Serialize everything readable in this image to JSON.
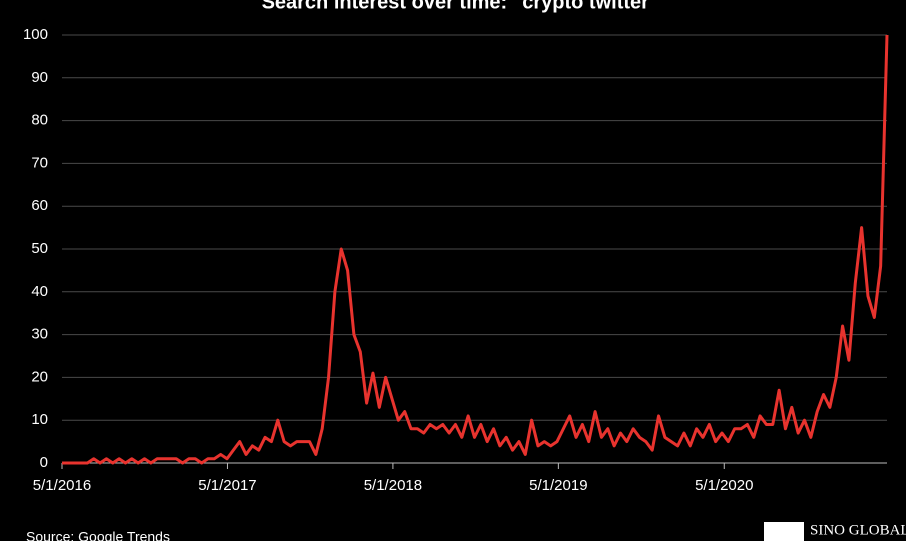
{
  "chart_data": {
    "type": "line",
    "title": "Search interest over time: \"crypto twitter\"",
    "source": "Source: Google Trends",
    "logo": "SINO GLOBAL",
    "color": "#e8332e",
    "grid": true,
    "xlim": [
      "5/1/2016",
      "4/25/2021"
    ],
    "xticks": [
      "5/1/2016",
      "5/1/2017",
      "5/1/2018",
      "5/1/2019",
      "5/1/2020"
    ],
    "ylim": [
      0,
      100
    ],
    "yticks": [
      0,
      10,
      20,
      30,
      40,
      50,
      60,
      70,
      80,
      90,
      100
    ],
    "x": [
      "5/1/2016",
      "5/15/2016",
      "5/29/2016",
      "6/12/2016",
      "6/26/2016",
      "7/10/2016",
      "7/24/2016",
      "8/7/2016",
      "8/21/2016",
      "9/4/2016",
      "9/18/2016",
      "10/2/2016",
      "10/16/2016",
      "10/30/2016",
      "11/13/2016",
      "11/27/2016",
      "12/11/2016",
      "12/25/2016",
      "1/8/2017",
      "1/22/2017",
      "2/5/2017",
      "2/19/2017",
      "3/5/2017",
      "3/19/2017",
      "4/2/2017",
      "4/16/2017",
      "4/30/2017",
      "5/14/2017",
      "5/28/2017",
      "6/11/2017",
      "6/25/2017",
      "7/9/2017",
      "7/23/2017",
      "8/6/2017",
      "8/20/2017",
      "9/3/2017",
      "9/17/2017",
      "10/1/2017",
      "10/15/2017",
      "10/29/2017",
      "11/12/2017",
      "11/26/2017",
      "12/10/2017",
      "12/24/2017",
      "1/7/2018",
      "1/21/2018",
      "2/4/2018",
      "2/18/2018",
      "3/4/2018",
      "3/18/2018",
      "4/1/2018",
      "4/15/2018",
      "4/29/2018",
      "5/13/2018",
      "5/27/2018",
      "6/10/2018",
      "6/24/2018",
      "7/8/2018",
      "7/22/2018",
      "8/5/2018",
      "8/19/2018",
      "9/2/2018",
      "9/16/2018",
      "9/30/2018",
      "10/14/2018",
      "10/28/2018",
      "11/11/2018",
      "11/25/2018",
      "12/9/2018",
      "12/23/2018",
      "1/6/2019",
      "1/20/2019",
      "2/3/2019",
      "2/17/2019",
      "3/3/2019",
      "3/17/2019",
      "3/31/2019",
      "4/14/2019",
      "4/28/2019",
      "5/12/2019",
      "5/26/2019",
      "6/9/2019",
      "6/23/2019",
      "7/7/2019",
      "7/21/2019",
      "8/4/2019",
      "8/18/2019",
      "9/1/2019",
      "9/15/2019",
      "9/29/2019",
      "10/13/2019",
      "10/27/2019",
      "11/10/2019",
      "11/24/2019",
      "12/8/2019",
      "12/22/2019",
      "1/5/2020",
      "1/19/2020",
      "2/2/2020",
      "2/16/2020",
      "3/1/2020",
      "3/15/2020",
      "3/29/2020",
      "4/12/2020",
      "4/26/2020",
      "5/10/2020",
      "5/24/2020",
      "6/7/2020",
      "6/21/2020",
      "7/5/2020",
      "7/19/2020",
      "8/2/2020",
      "8/16/2020",
      "8/30/2020",
      "9/13/2020",
      "9/27/2020",
      "10/11/2020",
      "10/25/2020",
      "11/8/2020",
      "11/22/2020",
      "12/6/2020",
      "12/20/2020",
      "1/3/2021",
      "1/17/2021",
      "1/31/2021",
      "2/14/2021",
      "2/28/2021",
      "3/14/2021",
      "3/28/2021",
      "4/11/2021",
      "4/25/2021"
    ],
    "values": [
      0,
      0,
      0,
      0,
      0,
      1,
      0,
      1,
      0,
      1,
      0,
      1,
      0,
      1,
      0,
      1,
      1,
      1,
      1,
      0,
      1,
      1,
      0,
      1,
      1,
      2,
      1,
      3,
      5,
      2,
      4,
      3,
      6,
      5,
      10,
      5,
      4,
      5,
      5,
      5,
      2,
      8,
      20,
      40,
      50,
      45,
      30,
      26,
      14,
      21,
      13,
      20,
      15,
      10,
      12,
      8,
      8,
      7,
      9,
      8,
      9,
      7,
      9,
      6,
      11,
      6,
      9,
      5,
      8,
      4,
      6,
      3,
      5,
      2,
      10,
      4,
      5,
      4,
      5,
      8,
      11,
      6,
      9,
      5,
      12,
      6,
      8,
      4,
      7,
      5,
      8,
      6,
      5,
      3,
      11,
      6,
      5,
      4,
      7,
      4,
      8,
      6,
      9,
      5,
      7,
      5,
      8,
      8,
      9,
      6,
      11,
      9,
      9,
      17,
      8,
      13,
      7,
      10,
      6,
      12,
      16,
      13,
      20,
      32,
      24,
      42,
      55,
      39,
      34,
      46,
      100
    ]
  }
}
